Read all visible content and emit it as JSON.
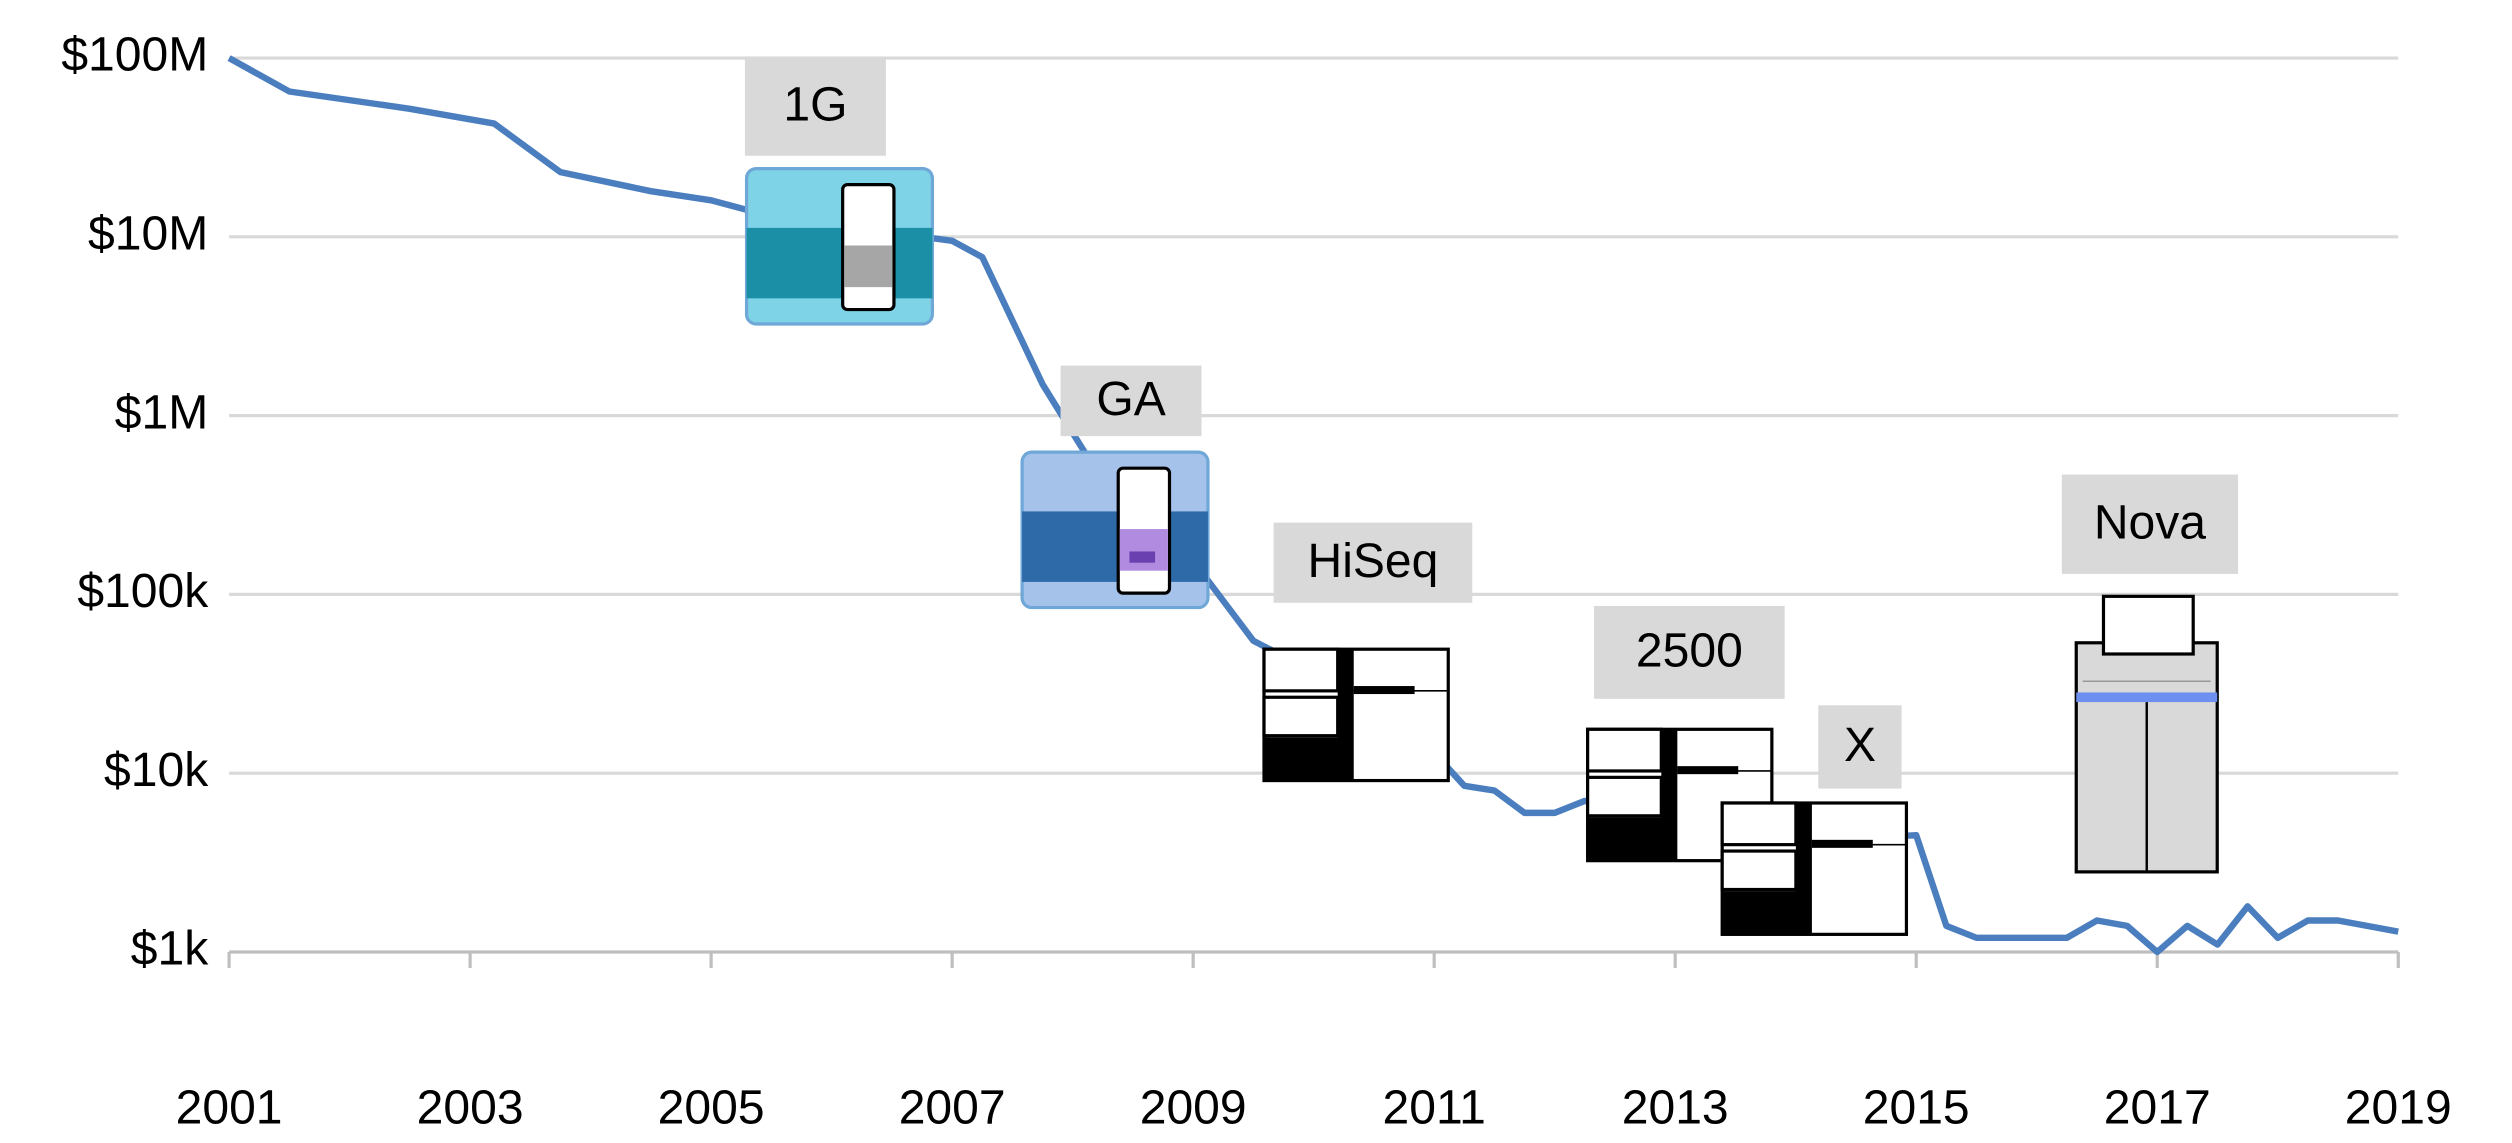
{
  "chart_data": {
    "type": "line",
    "x": [
      2001.0,
      2001.5,
      2002.5,
      2003.2,
      2003.75,
      2004.5,
      2005.0,
      2005.5,
      2007.0,
      2007.25,
      2007.5,
      2007.75,
      2008.0,
      2008.25,
      2009.0,
      2009.25,
      2009.5,
      2009.75,
      2011.0,
      2011.25,
      2011.5,
      2011.75,
      2012.0,
      2012.25,
      2014.75,
      2015.0,
      2015.25,
      2015.5,
      2016.0,
      2016.25,
      2016.5,
      2016.75,
      2017.0,
      2017.25,
      2017.5,
      2017.75,
      2018.0,
      2018.25,
      2018.5,
      2019.0
    ],
    "series": [
      {
        "color": "#4a7ebf",
        "values": [
          100000000,
          65000000,
          52000000,
          43000000,
          23000000,
          18000000,
          16000000,
          13000000,
          9500000,
          7700000,
          3400000,
          1500000,
          800000,
          430000,
          154000,
          92000,
          55000,
          45000,
          13000,
          8500,
          8000,
          6000,
          6000,
          7000,
          4400,
          4500,
          1400,
          1200,
          1200,
          1200,
          1500,
          1400,
          1000,
          1400,
          1100,
          1800,
          1200,
          1500,
          1500,
          1300
        ]
      }
    ],
    "log_y": true,
    "ylim": [
      1000,
      100000000
    ],
    "yticks": [
      {
        "value": 1000,
        "label": "$1k"
      },
      {
        "value": 10000,
        "label": "$10k"
      },
      {
        "value": 100000,
        "label": "$100k"
      },
      {
        "value": 1000000,
        "label": "$1M"
      },
      {
        "value": 10000000,
        "label": "$10M"
      },
      {
        "value": 100000000,
        "label": "$100M"
      }
    ],
    "xlim": [
      2001,
      2019
    ],
    "xticks": [
      2001,
      2003,
      2005,
      2007,
      2009,
      2011,
      2013,
      2015,
      2017,
      2019
    ],
    "grid": true,
    "annotations": [
      "1G",
      "GA",
      "HiSeq",
      "2500",
      "X",
      "Nova"
    ]
  }
}
